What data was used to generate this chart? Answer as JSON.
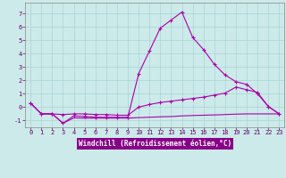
{
  "xlabel": "Windchill (Refroidissement éolien,°C)",
  "bg_color": "#cceaea",
  "line_color": "#aa00aa",
  "xlim": [
    -0.5,
    23.5
  ],
  "ylim": [
    -1.5,
    7.8
  ],
  "yticks": [
    -1,
    0,
    1,
    2,
    3,
    4,
    5,
    6,
    7
  ],
  "xticks": [
    0,
    1,
    2,
    3,
    4,
    5,
    6,
    7,
    8,
    9,
    10,
    11,
    12,
    13,
    14,
    15,
    16,
    17,
    18,
    19,
    20,
    21,
    22,
    23
  ],
  "line1_x": [
    0,
    1,
    2,
    3,
    4,
    5,
    6,
    7,
    8,
    9,
    10,
    11,
    12,
    13,
    14,
    15,
    16,
    17,
    18,
    19,
    20,
    21,
    22,
    23
  ],
  "line1_y": [
    0.3,
    -0.5,
    -0.5,
    -1.2,
    -0.65,
    -0.7,
    -0.75,
    -0.75,
    -0.75,
    -0.75,
    2.5,
    4.2,
    5.9,
    6.5,
    7.1,
    5.2,
    4.3,
    3.2,
    2.4,
    1.9,
    1.7,
    1.0,
    0.05,
    -0.5
  ],
  "line2_x": [
    0,
    1,
    2,
    3,
    4,
    5,
    6,
    7,
    8,
    9,
    10,
    11,
    12,
    13,
    14,
    15,
    16,
    17,
    18,
    19,
    20,
    21,
    22,
    23
  ],
  "line2_y": [
    0.3,
    -0.5,
    -0.5,
    -0.55,
    -0.5,
    -0.5,
    -0.55,
    -0.55,
    -0.6,
    -0.6,
    0.0,
    0.2,
    0.35,
    0.45,
    0.55,
    0.65,
    0.75,
    0.9,
    1.05,
    1.5,
    1.3,
    1.1,
    0.05,
    -0.5
  ],
  "line3_x": [
    0,
    1,
    2,
    3,
    4,
    5,
    6,
    7,
    8,
    9,
    10,
    11,
    12,
    13,
    14,
    15,
    16,
    17,
    18,
    19,
    20,
    21,
    22,
    23
  ],
  "line3_y": [
    0.3,
    -0.5,
    -0.5,
    -1.2,
    -0.8,
    -0.82,
    -0.82,
    -0.82,
    -0.82,
    -0.82,
    -0.78,
    -0.75,
    -0.72,
    -0.7,
    -0.65,
    -0.62,
    -0.6,
    -0.58,
    -0.55,
    -0.52,
    -0.5,
    -0.5,
    -0.5,
    -0.5
  ],
  "xlabel_bg": "#880088",
  "xlabel_color": "#ffffff",
  "xlabel_fontsize": 5.5,
  "tick_fontsize": 5.0,
  "grid_color": "#aad4d4"
}
